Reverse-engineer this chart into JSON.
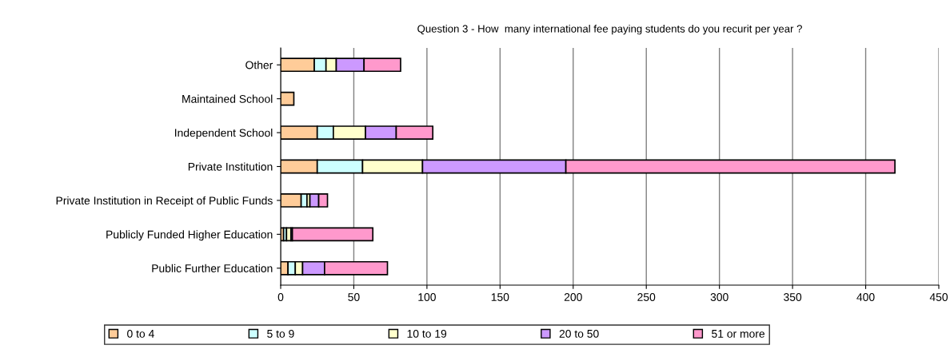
{
  "chart_data": {
    "type": "bar",
    "orientation": "horizontal",
    "stacked": true,
    "title": "Question 3 - How  many international fee paying students do you recurit per year ?",
    "categories": [
      "Other",
      "Maintained School",
      "Independent School",
      "Private Institution",
      "Private Institution in Receipt of Public Funds",
      "Publicly Funded Higher Education",
      "Public Further Education"
    ],
    "series": [
      {
        "name": "0 to 4",
        "color": "#ffcc99",
        "values": [
          23,
          9,
          25,
          25,
          14,
          2,
          5
        ]
      },
      {
        "name": "5 to 9",
        "color": "#ccffff",
        "values": [
          8,
          0,
          11,
          31,
          4,
          2,
          5
        ]
      },
      {
        "name": "10 to 19",
        "color": "#ffffcc",
        "values": [
          7,
          0,
          22,
          41,
          2,
          3,
          5
        ]
      },
      {
        "name": "20 to 50",
        "color": "#cc99ff",
        "values": [
          19,
          0,
          21,
          98,
          6,
          1,
          15
        ]
      },
      {
        "name": "51 or more",
        "color": "#ff99cc",
        "values": [
          25,
          0,
          25,
          225,
          6,
          55,
          43
        ]
      }
    ],
    "xlim": [
      0,
      450
    ],
    "xticks": [
      0,
      50,
      100,
      150,
      200,
      250,
      300,
      350,
      400,
      450
    ],
    "grid": "x",
    "legend": "bottom"
  }
}
